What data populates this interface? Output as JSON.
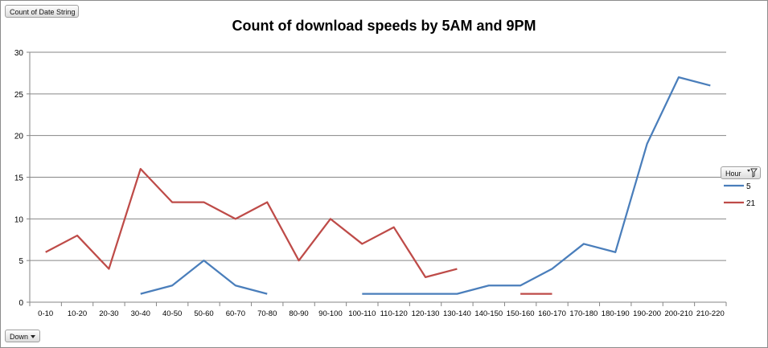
{
  "pivot": {
    "value_field": "Count of Date String",
    "axis_field": "Down",
    "legend_field": "Hour"
  },
  "icons": {
    "filter": "filter-icon",
    "dropdown": "chevron-down-icon"
  },
  "chart_data": {
    "type": "line",
    "title": "Count of download speeds by 5AM and 9PM",
    "xlabel": "",
    "ylabel": "",
    "ylim": [
      0,
      30
    ],
    "yticks": [
      0,
      5,
      10,
      15,
      20,
      25,
      30
    ],
    "grid": true,
    "legend_position": "right",
    "categories": [
      "0-10",
      "10-20",
      "20-30",
      "30-40",
      "40-50",
      "50-60",
      "60-70",
      "70-80",
      "80-90",
      "90-100",
      "100-110",
      "110-120",
      "120-130",
      "130-140",
      "140-150",
      "150-160",
      "160-170",
      "170-180",
      "180-190",
      "190-200",
      "200-210",
      "210-220"
    ],
    "series": [
      {
        "name": "5",
        "color": "#4a7ebb",
        "values": [
          null,
          null,
          null,
          1,
          2,
          5,
          2,
          1,
          null,
          null,
          1,
          1,
          1,
          1,
          2,
          2,
          4,
          7,
          6,
          19,
          27,
          26
        ]
      },
      {
        "name": "21",
        "color": "#be4b48",
        "values": [
          6,
          8,
          4,
          16,
          12,
          12,
          10,
          12,
          5,
          10,
          7,
          9,
          3,
          4,
          null,
          1,
          1,
          null,
          null,
          null,
          null,
          null
        ]
      }
    ]
  }
}
